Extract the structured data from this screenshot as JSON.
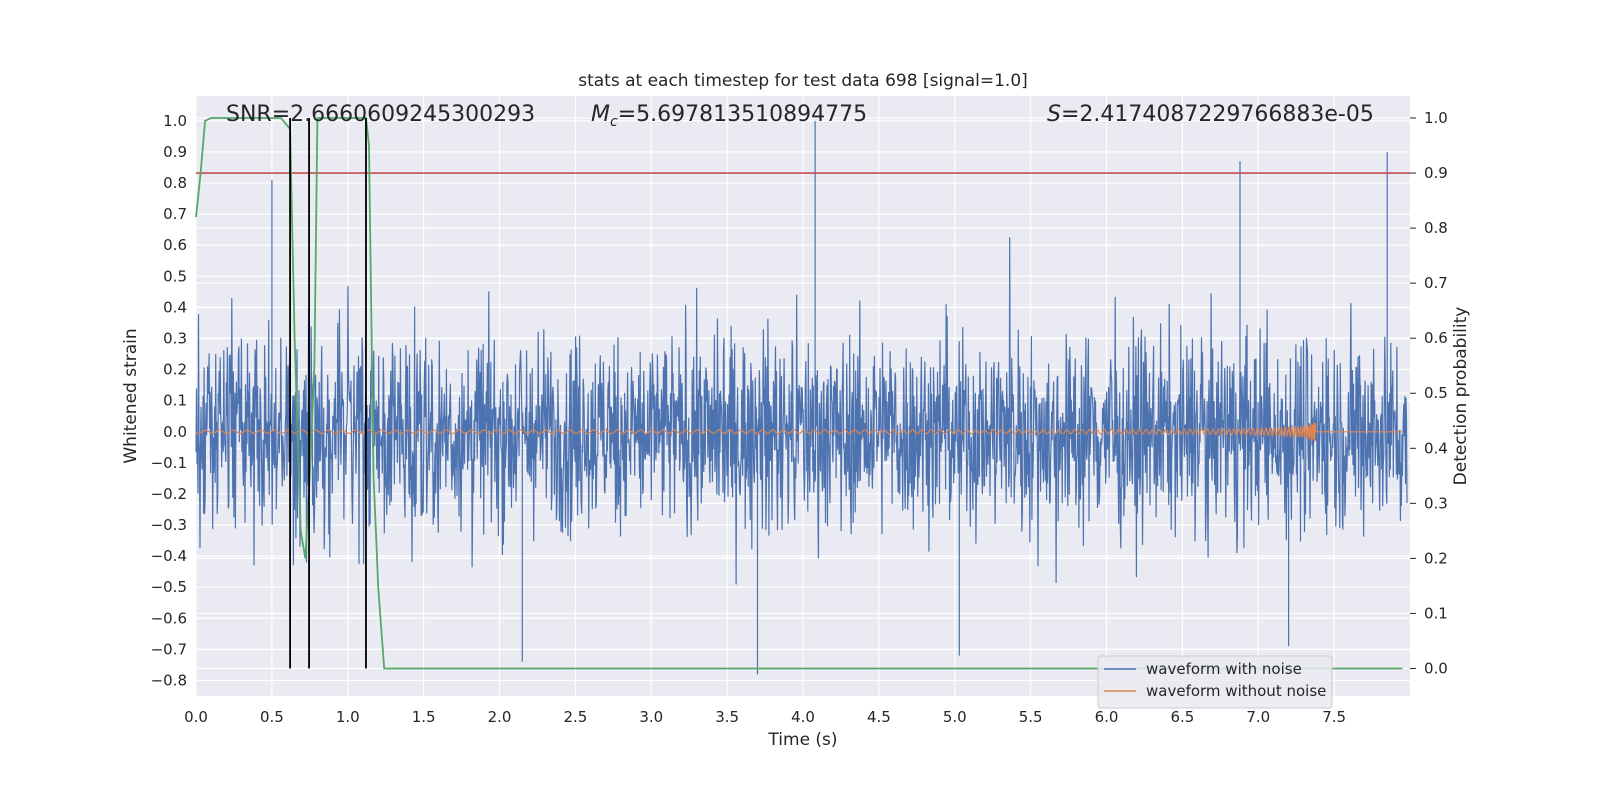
{
  "chart_data": {
    "type": "line",
    "title": "stats at each timestep for test data 698 [signal=1.0]",
    "xlabel": "Time (s)",
    "ylabel": "Whitened strain",
    "y2label": "Detection probability",
    "xlim": [
      0.0,
      8.0
    ],
    "ylim": [
      -0.85,
      1.08
    ],
    "y2lim": [
      -0.05,
      1.04
    ],
    "x_ticks": [
      0.0,
      0.5,
      1.0,
      1.5,
      2.0,
      2.5,
      3.0,
      3.5,
      4.0,
      4.5,
      5.0,
      5.5,
      6.0,
      6.5,
      7.0,
      7.5
    ],
    "x_tick_labels": [
      "0.0",
      "0.5",
      "1.0",
      "1.5",
      "2.0",
      "2.5",
      "3.0",
      "3.5",
      "4.0",
      "4.5",
      "5.0",
      "5.5",
      "6.0",
      "6.5",
      "7.0",
      "7.5"
    ],
    "y_ticks": [
      1.0,
      0.9,
      0.8,
      0.7,
      0.6,
      0.5,
      0.4,
      0.3,
      0.2,
      0.1,
      0.0,
      -0.1,
      -0.2,
      -0.3,
      -0.4,
      -0.5,
      -0.6,
      -0.7,
      -0.8
    ],
    "y_tick_labels": [
      "1.0",
      "0.9",
      "0.8",
      "0.7",
      "0.6",
      "0.5",
      "0.4",
      "0.3",
      "0.2",
      "0.1",
      "0.0",
      "−0.1",
      "−0.2",
      "−0.3",
      "−0.4",
      "−0.5",
      "−0.6",
      "−0.7",
      "−0.8"
    ],
    "y2_ticks": [
      1.0,
      0.9,
      0.8,
      0.7,
      0.6,
      0.5,
      0.4,
      0.3,
      0.2,
      0.1,
      0.0
    ],
    "y2_tick_labels": [
      "1.0",
      "0.9",
      "0.8",
      "0.7",
      "0.6",
      "0.5",
      "0.4",
      "0.3",
      "0.2",
      "0.1",
      "0.0"
    ],
    "grid": true,
    "legend_placement": "lower-right",
    "annotations": {
      "snr": "SNR=2.6660609245300293",
      "mc_symbol": "M",
      "mc_sub": "c",
      "mc_value": "=5.697813510894775",
      "s_symbol": "S",
      "s_value": "=2.4174087229766883e-05"
    },
    "series": [
      {
        "name": "waveform with noise",
        "color": "#4c72b0",
        "style": "dense-noise",
        "typical_extent": [
          -0.43,
          0.46
        ],
        "peak_times": [
          0.5,
          4.08,
          6.88,
          7.85
        ],
        "peak_values": [
          0.81,
          1.0,
          0.87,
          0.9
        ],
        "trough_times": [
          2.15,
          3.7,
          5.03,
          7.2
        ],
        "trough_values": [
          -0.74,
          -0.78,
          -0.72,
          -0.69
        ]
      },
      {
        "name": "waveform without noise",
        "color": "#dd8452",
        "style": "chirp",
        "x_range": [
          0.0,
          7.95
        ],
        "merger_time": 7.38,
        "start_amplitude": 0.004,
        "peak_amplitude": 0.045
      },
      {
        "name": "",
        "color": "#55a868",
        "axis": "y2",
        "x": [
          0.0,
          0.03,
          0.06,
          0.1,
          0.3,
          0.5,
          0.56,
          0.62,
          0.65,
          0.69,
          0.72,
          0.75,
          0.78,
          0.8,
          1.0,
          1.12,
          1.14,
          1.17,
          1.19,
          1.2,
          1.24,
          1.4,
          3.0,
          6.0,
          7.95
        ],
        "y": [
          0.82,
          0.9,
          0.995,
          1.0,
          1.0,
          1.0,
          1.0,
          0.98,
          0.6,
          0.25,
          0.2,
          0.35,
          0.55,
          1.0,
          1.0,
          1.0,
          0.95,
          0.35,
          0.22,
          0.15,
          0.0,
          0.0,
          0.0,
          0.0,
          0.0
        ]
      }
    ],
    "threshold": {
      "value": 0.9,
      "axis": "y2",
      "color": "#c44e52"
    },
    "vlines": {
      "times": [
        0.62,
        0.745,
        1.12
      ],
      "color": "#000000"
    }
  }
}
